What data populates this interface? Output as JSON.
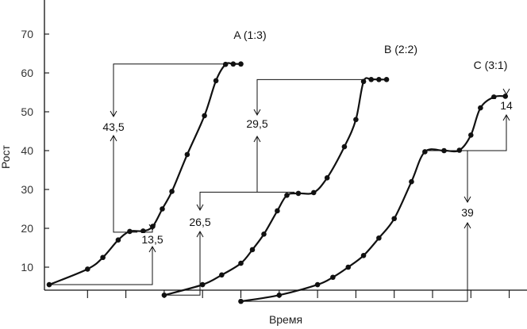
{
  "chart_data": {
    "type": "line",
    "title": "",
    "xlabel": "Время",
    "ylabel": "Рост",
    "ylim": [
      2,
      74
    ],
    "yticks": [
      10,
      20,
      30,
      40,
      50,
      60,
      70
    ],
    "ytick_labels": [
      "10",
      "20",
      "30",
      "40",
      "50",
      "60",
      "70"
    ],
    "xlim": [
      0,
      12.5
    ],
    "xticks": [
      1,
      2,
      3,
      4,
      5,
      6,
      7,
      8,
      9,
      10,
      11,
      12
    ],
    "xtick_labels": [],
    "grid": false,
    "series": [
      {
        "name": "A (1:3)",
        "x": [
          0,
          1,
          1.4,
          1.8,
          2.1,
          2.45,
          2.7,
          2.95,
          3.2,
          3.6,
          4.05,
          4.35,
          4.6,
          4.8,
          5.0
        ],
        "y": [
          5.5,
          9.5,
          12.5,
          17,
          19.2,
          19.3,
          20.5,
          25,
          29.5,
          39,
          49,
          58,
          62.2,
          62.3,
          62.3
        ]
      },
      {
        "name": "B (2:2)",
        "x": [
          3.0,
          4.0,
          4.5,
          5.0,
          5.3,
          5.6,
          5.95,
          6.2,
          6.5,
          6.9,
          7.25,
          7.7,
          8.0,
          8.2,
          8.4,
          8.6,
          8.8
        ],
        "y": [
          2.8,
          5.5,
          8,
          11,
          14.5,
          18.5,
          24.5,
          28.5,
          29,
          29.2,
          33,
          41,
          48,
          57.8,
          58.3,
          58.3,
          58.3
        ]
      },
      {
        "name": "C (3:1)",
        "x": [
          5.0,
          6.0,
          7.0,
          7.4,
          7.8,
          8.2,
          8.6,
          9.0,
          9.45,
          9.8,
          10.3,
          10.7,
          11.0,
          11.25,
          11.6,
          11.9
        ],
        "y": [
          1.2,
          2.8,
          5.5,
          7.4,
          10,
          13,
          17.5,
          22.5,
          32,
          39.7,
          40,
          40.1,
          44,
          51,
          53.8,
          54
        ]
      }
    ],
    "annotations": [
      {
        "series": "A (1:3)",
        "text": "13,5",
        "from": 5.5,
        "to": 19.0
      },
      {
        "series": "A (1:3)",
        "text": "43,5",
        "from": 19.0,
        "to": 62.3
      },
      {
        "series": "B (2:2)",
        "text": "26,5",
        "from": 2.8,
        "to": 29.3
      },
      {
        "series": "B (2:2)",
        "text": "29,5",
        "from": 29.3,
        "to": 58.3
      },
      {
        "series": "C (3:1)",
        "text": "39",
        "from": 1.2,
        "to": 40.0
      },
      {
        "series": "C (3:1)",
        "text": "14",
        "from": 40.0,
        "to": 54.0
      }
    ]
  }
}
